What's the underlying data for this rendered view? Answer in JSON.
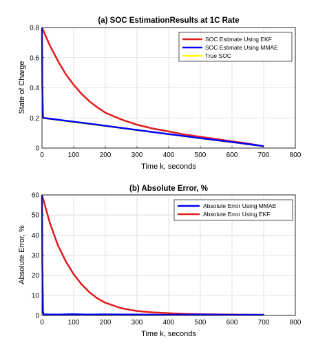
{
  "chart_data": [
    {
      "type": "line",
      "title": "(a) SOC EstimationResults at 1C Rate",
      "xlabel": "Time k, seconds",
      "ylabel": "State of Charge",
      "xlim": [
        0,
        800
      ],
      "ylim": [
        0,
        0.8
      ],
      "xticks": [
        "0",
        "100",
        "200",
        "300",
        "400",
        "500",
        "600",
        "700",
        "800"
      ],
      "yticks": [
        "0",
        "0.2",
        "0.4",
        "0.6",
        "0.8"
      ],
      "grid": true,
      "legend_position": "top-right",
      "series": [
        {
          "name": "SOC Estimate Using EKF",
          "color": "#e31a1c",
          "x": [
            0,
            25,
            50,
            75,
            100,
            125,
            150,
            175,
            200,
            250,
            300,
            350,
            400,
            450,
            500,
            550,
            600,
            650,
            700
          ],
          "y": [
            0.8,
            0.68,
            0.58,
            0.49,
            0.42,
            0.36,
            0.31,
            0.27,
            0.235,
            0.19,
            0.155,
            0.13,
            0.11,
            0.09,
            0.075,
            0.06,
            0.045,
            0.03,
            0.012
          ]
        },
        {
          "name": "SOC Estimate Using MMAE",
          "color": "#0000ff",
          "x": [
            0,
            1,
            3,
            5,
            100,
            200,
            300,
            400,
            500,
            600,
            700
          ],
          "y": [
            0.8,
            0.4,
            0.21,
            0.2,
            0.175,
            0.148,
            0.12,
            0.093,
            0.066,
            0.04,
            0.013
          ]
        },
        {
          "name": "True SOC",
          "color": "#ffff00",
          "x": [
            0,
            700
          ],
          "y": [
            0.2,
            0.012
          ]
        }
      ]
    },
    {
      "type": "line",
      "title": "(b) Absolute Error, %",
      "xlabel": "Time k, seconds",
      "ylabel": "Absolute Error, %",
      "xlim": [
        0,
        800
      ],
      "ylim": [
        0,
        60
      ],
      "xticks": [
        "0",
        "100",
        "200",
        "300",
        "400",
        "500",
        "600",
        "700",
        "800"
      ],
      "yticks": [
        "0",
        "10",
        "20",
        "30",
        "40",
        "50",
        "60"
      ],
      "grid": true,
      "legend_position": "top-right",
      "series": [
        {
          "name": "Absolute Error Using MMAE",
          "color": "#0000ff",
          "x": [
            0,
            1,
            3,
            5,
            50,
            100,
            150,
            200,
            300,
            400,
            500,
            600,
            700
          ],
          "y": [
            60,
            25,
            2,
            0.5,
            0.4,
            0.6,
            0.4,
            0.5,
            0.4,
            0.3,
            0.4,
            0.3,
            0.3
          ]
        },
        {
          "name": "Absolute Error Using EKF",
          "color": "#e31a1c",
          "x": [
            0,
            25,
            50,
            75,
            100,
            125,
            150,
            175,
            200,
            250,
            300,
            350,
            400,
            450,
            500,
            600,
            700
          ],
          "y": [
            60,
            46,
            35,
            27,
            20.5,
            15.5,
            11.5,
            8.5,
            6.3,
            3.6,
            2.2,
            1.5,
            1.1,
            0.8,
            0.6,
            0.4,
            0.3
          ]
        }
      ]
    }
  ]
}
